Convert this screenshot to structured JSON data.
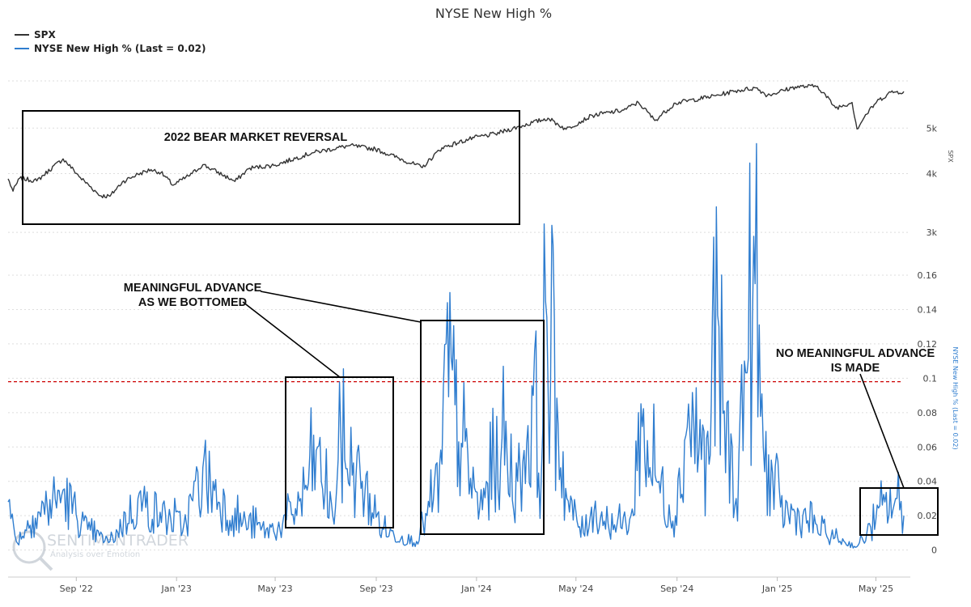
{
  "chart_data": {
    "type": "line",
    "title": "NYSE New High %",
    "legend": {
      "placement": "top-left",
      "entries": [
        {
          "name": "SPX",
          "color": "#333333"
        },
        {
          "name": "NYSE New High % (Last = 0.02)",
          "color": "#2f7dcf"
        }
      ]
    },
    "x_axis": {
      "range": [
        "2022-06-10",
        "2025-06-04"
      ],
      "ticks": [
        {
          "date": "2022-09-01",
          "label": "Sep '22"
        },
        {
          "date": "2023-01-01",
          "label": "Jan '23"
        },
        {
          "date": "2023-05-01",
          "label": "May '23"
        },
        {
          "date": "2023-09-01",
          "label": "Sep '23"
        },
        {
          "date": "2024-01-01",
          "label": "Jan '24"
        },
        {
          "date": "2024-05-01",
          "label": "May '24"
        },
        {
          "date": "2024-09-01",
          "label": "Sep '24"
        },
        {
          "date": "2025-01-01",
          "label": "Jan '25"
        },
        {
          "date": "2025-05-01",
          "label": "May '25"
        }
      ]
    },
    "panels": [
      {
        "series": "SPX",
        "ylabel": "SPX",
        "scale": "log",
        "ylim": [
          2850,
          6300
        ],
        "ticks": [
          {
            "value": 3000,
            "label": "3k"
          },
          {
            "value": 4000,
            "label": "4k"
          },
          {
            "value": 5000,
            "label": "5k"
          }
        ],
        "grid": true
      },
      {
        "series": "NYSE New High % (Last = 0.02)",
        "ylabel": "NYSE New High % (Last = 0.02)",
        "ylim": [
          -0.003,
          0.16
        ],
        "ticks": [
          0,
          0.02,
          0.04,
          0.06,
          0.08,
          0.1,
          0.12,
          0.14,
          0.16
        ],
        "grid": true,
        "reference_line": {
          "value": 0.098,
          "color": "#cc0000",
          "style": "dashed"
        }
      }
    ],
    "series": [
      {
        "name": "SPX",
        "color": "#333333",
        "x": [
          "2022-06-10",
          "2022-06-16",
          "2022-06-24",
          "2022-07-15",
          "2022-08-16",
          "2022-09-06",
          "2022-09-30",
          "2022-10-12",
          "2022-10-27",
          "2022-11-15",
          "2022-12-01",
          "2022-12-13",
          "2022-12-28",
          "2023-01-20",
          "2023-02-02",
          "2023-03-13",
          "2023-03-31",
          "2023-05-01",
          "2023-06-15",
          "2023-07-31",
          "2023-08-31",
          "2023-10-27",
          "2023-11-20",
          "2023-12-29",
          "2024-01-24",
          "2024-03-28",
          "2024-04-19",
          "2024-05-21",
          "2024-06-28",
          "2024-07-16",
          "2024-08-05",
          "2024-08-30",
          "2024-10-18",
          "2024-11-11",
          "2024-12-06",
          "2024-12-20",
          "2025-01-23",
          "2025-02-19",
          "2025-03-13",
          "2025-04-02",
          "2025-04-08",
          "2025-04-17",
          "2025-05-02",
          "2025-05-19",
          "2025-06-04"
        ],
        "values": [
          3900,
          3670,
          3910,
          3860,
          4300,
          3920,
          3590,
          3580,
          3840,
          3990,
          4080,
          4020,
          3780,
          4000,
          4180,
          3850,
          4110,
          4170,
          4430,
          4590,
          4510,
          4120,
          4540,
          4770,
          4860,
          5250,
          4970,
          5320,
          5460,
          5670,
          5190,
          5650,
          5860,
          6000,
          6090,
          5870,
          6120,
          6140,
          5520,
          5670,
          4980,
          5280,
          5690,
          5960,
          5980
        ]
      },
      {
        "name": "NYSE New High % (Last = 0.02)",
        "color": "#2f7dcf",
        "x": [
          "2022-06-10",
          "2022-06-20",
          "2022-07-10",
          "2022-08-16",
          "2022-09-15",
          "2022-10-12",
          "2022-11-15",
          "2022-12-12",
          "2023-01-10",
          "2023-02-02",
          "2023-03-10",
          "2023-04-20",
          "2023-05-10",
          "2023-06-01",
          "2023-06-20",
          "2023-07-10",
          "2023-07-20",
          "2023-08-15",
          "2023-09-10",
          "2023-10-20",
          "2023-11-05",
          "2023-11-20",
          "2023-11-25",
          "2023-12-15",
          "2024-01-05",
          "2024-02-01",
          "2024-02-20",
          "2024-03-10",
          "2024-03-20",
          "2024-03-25",
          "2024-04-20",
          "2024-05-10",
          "2024-05-20",
          "2024-06-20",
          "2024-07-10",
          "2024-07-16",
          "2024-08-10",
          "2024-08-30",
          "2024-09-15",
          "2024-10-10",
          "2024-10-14",
          "2024-11-12",
          "2024-11-22",
          "2024-12-05",
          "2024-12-15",
          "2025-01-05",
          "2025-02-01",
          "2025-03-01",
          "2025-04-08",
          "2025-04-20",
          "2025-05-01",
          "2025-05-12",
          "2025-05-25",
          "2025-06-04"
        ],
        "values": [
          0.028,
          0.005,
          0.02,
          0.035,
          0.012,
          0.005,
          0.03,
          0.022,
          0.015,
          0.048,
          0.02,
          0.012,
          0.015,
          0.03,
          0.058,
          0.02,
          0.065,
          0.04,
          0.012,
          0.005,
          0.025,
          0.05,
          0.12,
          0.06,
          0.025,
          0.065,
          0.04,
          0.09,
          0.045,
          0.145,
          0.03,
          0.01,
          0.025,
          0.015,
          0.02,
          0.08,
          0.04,
          0.02,
          0.085,
          0.05,
          0.135,
          0.03,
          0.11,
          0.155,
          0.06,
          0.025,
          0.02,
          0.01,
          0.002,
          0.01,
          0.018,
          0.028,
          0.03,
          0.02
        ]
      }
    ],
    "annotations": [
      {
        "text": "2022 BEAR MARKET REVERSAL",
        "date_range": [
          "2022-06-11",
          "2024-02-22"
        ],
        "panel": "SPX"
      },
      {
        "text": [
          "MEANINGFUL ADVANCE",
          "AS WE BOTTOMED"
        ],
        "highlights": [
          [
            "2023-05-10",
            "2023-09-10"
          ],
          [
            "2023-10-25",
            "2024-03-25"
          ]
        ]
      },
      {
        "text": [
          "NO MEANINGFUL ADVANCE",
          "IS MADE"
        ],
        "highlights": [
          [
            "2025-04-08",
            "2025-06-04"
          ]
        ]
      }
    ]
  },
  "watermark": {
    "brand": "SENTIMENTRADER",
    "tagline": "Analysis over Emotion"
  }
}
